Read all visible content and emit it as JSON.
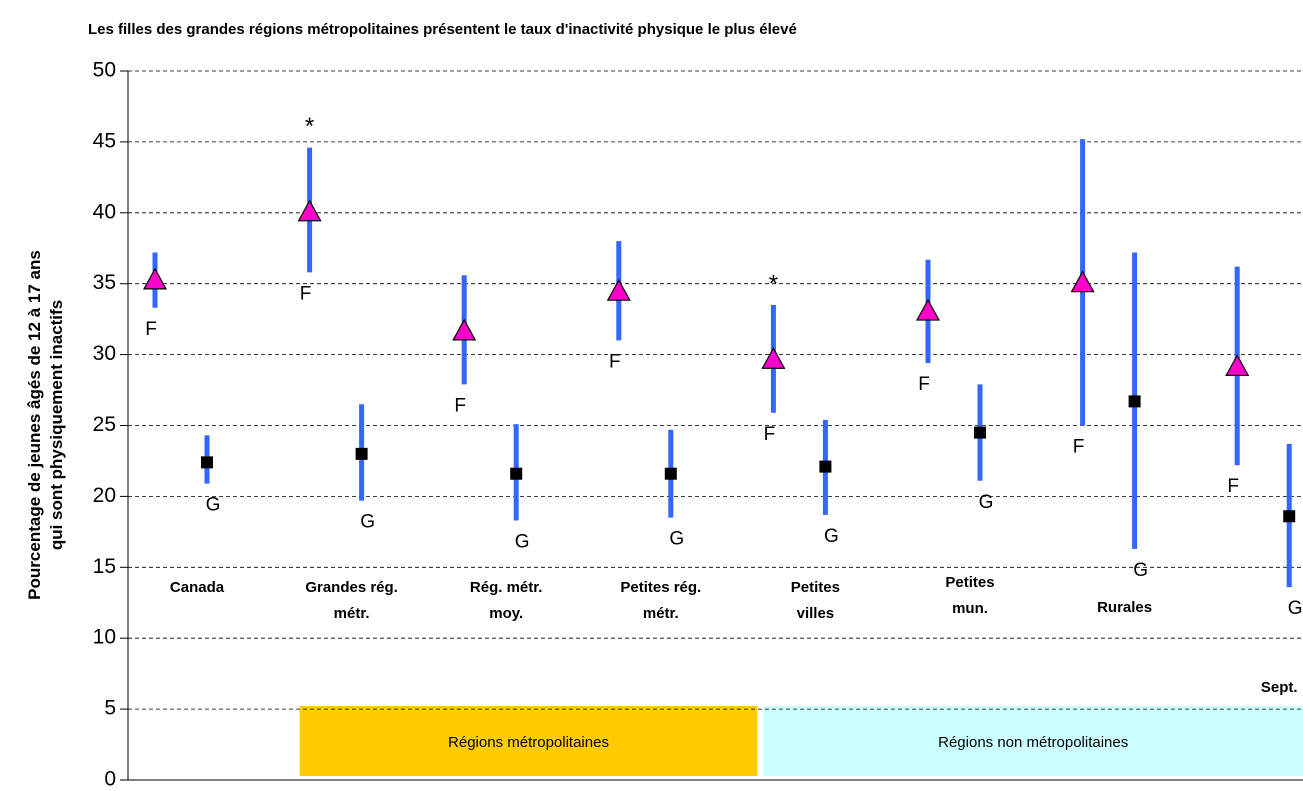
{
  "chart_data": {
    "type": "errorbar",
    "title": "Les filles des grandes régions métropolitaines présentent le taux d'inactivité physique le plus élevé",
    "y_label": "Pourcentage de jeunes âgés de 12 à 17 ans\nqui sont physiquement inactifs",
    "categories": [
      "Canada",
      "Grandes rég.\nmétr.",
      "Rég. métr.\nmoy.",
      "Petites rég.\nmétr.",
      "Petites\nvilles",
      "Petites\nmun.",
      "Rurales",
      "Sept."
    ],
    "series": [
      {
        "name": "F",
        "color": "#ff00cc",
        "marker": "triangle",
        "error_color": "#3366ff",
        "values": [
          35.2,
          40.0,
          31.6,
          34.4,
          29.6,
          33.0,
          35.0,
          29.1
        ],
        "low": [
          33.3,
          35.8,
          27.9,
          31.0,
          25.9,
          29.4,
          25.0,
          22.2
        ],
        "high": [
          37.2,
          44.6,
          35.6,
          38.0,
          33.5,
          36.7,
          45.2,
          36.2
        ],
        "markers": [
          null,
          "*",
          null,
          null,
          "*",
          null,
          null,
          null
        ]
      },
      {
        "name": "G",
        "color": "#000000",
        "marker": "square",
        "error_color": "#3366ff",
        "values": [
          22.4,
          23.0,
          21.6,
          21.6,
          22.1,
          24.5,
          26.7,
          18.6
        ],
        "low": [
          20.9,
          19.7,
          18.3,
          18.5,
          18.7,
          21.1,
          16.3,
          13.6
        ],
        "high": [
          24.3,
          26.5,
          25.1,
          24.7,
          25.4,
          27.9,
          37.2,
          23.7
        ]
      }
    ],
    "groups": [
      {
        "label": "Régions métropolitaines",
        "color": "#ffcc00",
        "first": 1,
        "last": 3
      },
      {
        "label": "Régions non métropolitaines",
        "color": "#ccffff",
        "first": 4,
        "last": 7
      }
    ],
    "ylim": [
      0,
      50
    ],
    "yticks": [
      0,
      5,
      10,
      15,
      20,
      25,
      30,
      35,
      40,
      45,
      50
    ],
    "grid": true
  }
}
